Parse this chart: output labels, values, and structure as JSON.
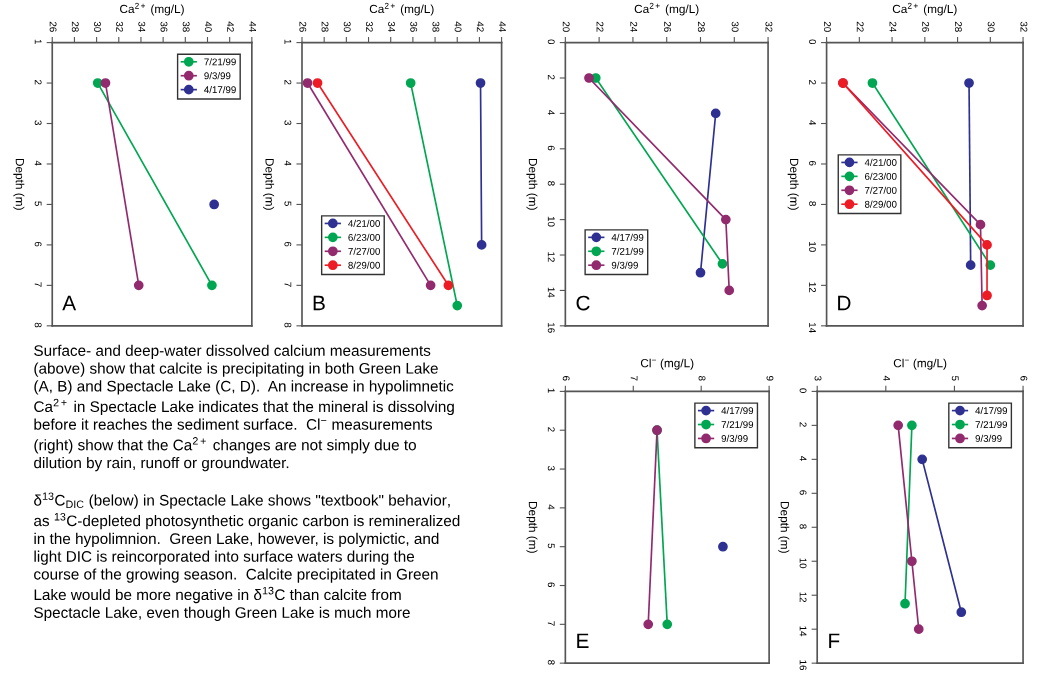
{
  "chart_data": [
    {
      "type": "line",
      "xlabel": "Ca$^{2+}$ (mg/L)",
      "ylabel": "Depth (m)",
      "xlim": [
        26,
        44
      ],
      "xticks": [
        26,
        28,
        30,
        32,
        34,
        36,
        38,
        40,
        42,
        44
      ],
      "ylim": [
        8,
        1
      ],
      "yticks": [
        1,
        2,
        3,
        4,
        5,
        6,
        7,
        8
      ],
      "marker": "circle",
      "line_style": "solid",
      "legend": "top right",
      "annotations": [
        "A"
      ],
      "series": [
        {
          "name": "7/21/99",
          "color": "#00a651",
          "x": [
            30.1,
            40.4
          ],
          "values": [
            2,
            7
          ]
        },
        {
          "name": "9/3/99",
          "color": "#922a6e",
          "x": [
            30.8,
            33.8
          ],
          "values": [
            2,
            7
          ]
        },
        {
          "name": "4/17/99",
          "color": "#2e3192",
          "x": [
            40.6
          ],
          "values": [
            5
          ]
        }
      ]
    },
    {
      "type": "line",
      "xlabel": "Ca$^{2+}$ (mg/L)",
      "ylabel": "Depth (m)",
      "xlim": [
        26,
        44
      ],
      "xticks": [
        26,
        28,
        30,
        32,
        34,
        36,
        38,
        40,
        42,
        44
      ],
      "ylim": [
        8,
        1
      ],
      "yticks": [
        1,
        2,
        3,
        4,
        5,
        6,
        7,
        8
      ],
      "marker": "circle",
      "line_style": "solid",
      "legend": "bottom left",
      "annotations": [
        "B"
      ],
      "series": [
        {
          "name": "4/21/00",
          "color": "#2e3192",
          "x": [
            42.1,
            42.2
          ],
          "values": [
            2,
            6
          ]
        },
        {
          "name": "6/23/00",
          "color": "#00a651",
          "x": [
            35.8,
            40.0
          ],
          "values": [
            2,
            7.5
          ]
        },
        {
          "name": "7/27/00",
          "color": "#922a6e",
          "x": [
            26.5,
            37.6
          ],
          "values": [
            2,
            7
          ]
        },
        {
          "name": "8/29/00",
          "color": "#ed1c24",
          "x": [
            27.4,
            39.2
          ],
          "values": [
            2,
            7
          ]
        }
      ]
    },
    {
      "type": "line",
      "xlabel": "Ca$^{2+}$ (mg/L)",
      "ylabel": "Depth (m)",
      "xlim": [
        20,
        32
      ],
      "xticks": [
        20,
        22,
        24,
        26,
        28,
        30,
        32
      ],
      "ylim": [
        16,
        0
      ],
      "yticks": [
        0,
        2,
        4,
        6,
        8,
        10,
        12,
        14,
        16
      ],
      "marker": "circle",
      "line_style": "solid",
      "legend": "bottom left",
      "annotations": [
        "C"
      ],
      "series": [
        {
          "name": "4/17/99",
          "color": "#2e3192",
          "x": [
            28.9,
            28.0
          ],
          "values": [
            4,
            13
          ]
        },
        {
          "name": "7/21/99",
          "color": "#00a651",
          "x": [
            21.8,
            29.3
          ],
          "values": [
            2,
            12.5
          ]
        },
        {
          "name": "9/3/99",
          "color": "#922a6e",
          "x": [
            21.4,
            29.5,
            29.7
          ],
          "values": [
            2,
            10,
            14
          ]
        }
      ]
    },
    {
      "type": "line",
      "xlabel": "Ca$^{2+}$ (mg/L)",
      "ylabel": "Depth (m)",
      "xlim": [
        20,
        32
      ],
      "xticks": [
        20,
        22,
        24,
        26,
        28,
        30,
        32
      ],
      "ylim": [
        14,
        0
      ],
      "yticks": [
        0,
        2,
        4,
        6,
        8,
        10,
        12,
        14
      ],
      "marker": "circle",
      "line_style": "solid",
      "legend": "left",
      "annotations": [
        "D"
      ],
      "series": [
        {
          "name": "4/21/00",
          "color": "#2e3192",
          "x": [
            28.7,
            28.8
          ],
          "values": [
            2,
            11
          ]
        },
        {
          "name": "6/23/00",
          "color": "#00a651",
          "x": [
            22.8,
            30.0
          ],
          "values": [
            2,
            11
          ]
        },
        {
          "name": "7/27/00",
          "color": "#922a6e",
          "x": [
            21.0,
            29.4,
            29.5
          ],
          "values": [
            2,
            9,
            13
          ]
        },
        {
          "name": "8/29/00",
          "color": "#ed1c24",
          "x": [
            21.0,
            29.8,
            29.8
          ],
          "values": [
            2,
            10,
            12.5
          ]
        }
      ]
    },
    {
      "type": "other",
      "annotations": [
        "Surface- and deep-water dissolved calcium measurements\n(above) show that calcite is precipitating in both Green Lake\n(A, B) and Spectacle Lake (C, D).  An increase in hypolimnetic\nCa$^{2+}$ in Spectacle Lake indicates that the mineral is dissolving\nbefore it reaches the sediment surface.  Cl$^{−}$ measurements\n(right) show that the Ca$^{2+}$ changes are not simply due to\ndilution by rain, runoff or groundwater.",
        "δ$^{13}$C$_{DIC}$ (below) in Spectacle Lake shows \"textbook\" behavior,\nas $^{13}$C-depleted photosynthetic organic carbon is remineralized\nin the hypolimnion.  Green Lake, however, is polymictic, and\nlight DIC is reincorporated into surface waters during the\ncourse of the growing season.  Calcite precipitated in Green\nLake would be more negative in δ$^{13}$C than calcite from\nSpectacle Lake, even though Green Lake is much more"
      ]
    },
    {
      "type": "line",
      "xlabel": "Cl$^{−}$ (mg/L)",
      "ylabel": "Depth (m)",
      "xlim": [
        6,
        9
      ],
      "xticks": [
        6,
        7,
        8,
        9
      ],
      "ylim": [
        8,
        1
      ],
      "yticks": [
        1,
        2,
        3,
        4,
        5,
        6,
        7,
        8
      ],
      "marker": "circle",
      "line_style": "solid",
      "legend": "top right",
      "annotations": [
        "E"
      ],
      "series": [
        {
          "name": "4/17/99",
          "color": "#2e3192",
          "x": [
            8.32
          ],
          "values": [
            5
          ]
        },
        {
          "name": "7/21/99",
          "color": "#00a651",
          "x": [
            7.35,
            7.5
          ],
          "values": [
            2,
            7
          ]
        },
        {
          "name": "9/3/99",
          "color": "#922a6e",
          "x": [
            7.35,
            7.22
          ],
          "values": [
            2,
            7
          ]
        }
      ]
    },
    {
      "type": "line",
      "xlabel": "Cl$^{−}$ (mg/L)",
      "ylabel": "Depth (m)",
      "xlim": [
        3,
        6
      ],
      "xticks": [
        3,
        4,
        5,
        6
      ],
      "ylim": [
        16,
        0
      ],
      "yticks": [
        0,
        2,
        4,
        6,
        8,
        10,
        12,
        14,
        16
      ],
      "marker": "circle",
      "line_style": "solid",
      "legend": "top right",
      "annotations": [
        "F"
      ],
      "series": [
        {
          "name": "4/17/99",
          "color": "#2e3192",
          "x": [
            4.53,
            5.1
          ],
          "values": [
            4,
            13
          ]
        },
        {
          "name": "7/21/99",
          "color": "#00a651",
          "x": [
            4.38,
            4.28
          ],
          "values": [
            2,
            12.5
          ]
        },
        {
          "name": "9/3/99",
          "color": "#922a6e",
          "x": [
            4.18,
            4.38,
            4.48
          ],
          "values": [
            2,
            10,
            14
          ]
        }
      ]
    }
  ]
}
